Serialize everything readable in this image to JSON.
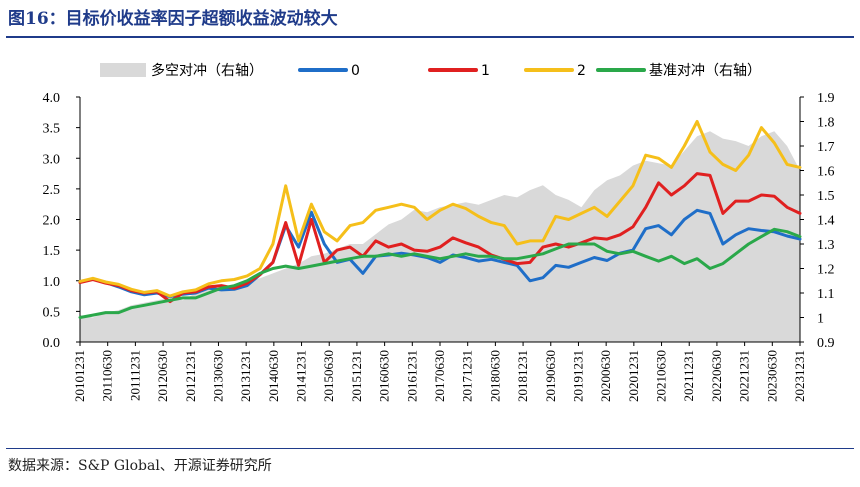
{
  "page": {
    "title": "图16：目标价收益率因子超额收益波动较大",
    "source": "数据来源：S&P Global、开源证券研究所"
  },
  "chart_data": {
    "type": "line",
    "left_axis": {
      "ylim": [
        0.0,
        4.0
      ],
      "ticks": [
        "0.0",
        "0.5",
        "1.0",
        "1.5",
        "2.0",
        "2.5",
        "3.0",
        "3.5",
        "4.0"
      ]
    },
    "right_axis": {
      "ylim": [
        0.9,
        1.9
      ],
      "ticks": [
        "0.9",
        "1",
        "1.1",
        "1.2",
        "1.3",
        "1.4",
        "1.5",
        "1.6",
        "1.7",
        "1.8",
        "1.9"
      ]
    },
    "x_tick_labels": [
      "20101231",
      "20110630",
      "20111231",
      "20120630",
      "20121231",
      "20130630",
      "20131231",
      "20140630",
      "20141231",
      "20150630",
      "20151231",
      "20160630",
      "20161231",
      "20170630",
      "20171231",
      "20180630",
      "20181231",
      "20190630",
      "20191231",
      "20200630",
      "20201231",
      "20210630",
      "20211231",
      "20220630",
      "20221231",
      "20230630",
      "20231231"
    ],
    "legend_position": "top",
    "series": [
      {
        "name": "多空对冲（右轴）",
        "kind": "area",
        "axis": "right",
        "color": "#d9d9d9",
        "values": [
          1.01,
          1.0,
          1.02,
          1.03,
          1.05,
          1.06,
          1.07,
          1.08,
          1.07,
          1.1,
          1.12,
          1.12,
          1.13,
          1.15,
          1.16,
          1.18,
          1.2,
          1.22,
          1.25,
          1.26,
          1.28,
          1.3,
          1.3,
          1.34,
          1.38,
          1.4,
          1.44,
          1.43,
          1.45,
          1.46,
          1.47,
          1.46,
          1.48,
          1.5,
          1.49,
          1.52,
          1.54,
          1.5,
          1.48,
          1.45,
          1.52,
          1.56,
          1.58,
          1.62,
          1.64,
          1.63,
          1.62,
          1.68,
          1.74,
          1.76,
          1.73,
          1.72,
          1.7,
          1.74,
          1.76,
          1.7,
          1.6
        ]
      },
      {
        "name": "0",
        "kind": "line",
        "axis": "left",
        "color": "#1f6ec8",
        "values": [
          0.98,
          1.03,
          0.97,
          0.9,
          0.82,
          0.77,
          0.8,
          0.74,
          0.78,
          0.8,
          0.88,
          0.85,
          0.86,
          0.92,
          1.1,
          1.3,
          1.9,
          1.55,
          2.12,
          1.6,
          1.3,
          1.35,
          1.12,
          1.4,
          1.42,
          1.45,
          1.42,
          1.38,
          1.3,
          1.42,
          1.38,
          1.32,
          1.35,
          1.3,
          1.25,
          1.0,
          1.05,
          1.25,
          1.22,
          1.3,
          1.38,
          1.33,
          1.45,
          1.5,
          1.85,
          1.9,
          1.75,
          2.0,
          2.15,
          2.1,
          1.6,
          1.75,
          1.85,
          1.82,
          1.8,
          1.73,
          1.68
        ]
      },
      {
        "name": "1",
        "kind": "line",
        "axis": "left",
        "color": "#e02020",
        "values": [
          0.97,
          1.02,
          0.96,
          0.92,
          0.84,
          0.8,
          0.82,
          0.66,
          0.8,
          0.82,
          0.9,
          0.92,
          0.88,
          0.96,
          1.1,
          1.3,
          1.95,
          1.25,
          2.0,
          1.3,
          1.5,
          1.55,
          1.4,
          1.65,
          1.55,
          1.6,
          1.5,
          1.48,
          1.55,
          1.7,
          1.62,
          1.55,
          1.42,
          1.35,
          1.28,
          1.3,
          1.55,
          1.6,
          1.55,
          1.62,
          1.7,
          1.68,
          1.75,
          1.88,
          2.2,
          2.6,
          2.4,
          2.55,
          2.75,
          2.72,
          2.1,
          2.3,
          2.3,
          2.4,
          2.38,
          2.2,
          2.1
        ]
      },
      {
        "name": "2",
        "kind": "line",
        "axis": "left",
        "color": "#f5bf1a",
        "values": [
          0.99,
          1.04,
          0.98,
          0.94,
          0.86,
          0.81,
          0.84,
          0.75,
          0.82,
          0.85,
          0.95,
          1.0,
          1.02,
          1.08,
          1.2,
          1.6,
          2.55,
          1.65,
          2.25,
          1.8,
          1.65,
          1.9,
          1.95,
          2.15,
          2.2,
          2.25,
          2.2,
          2.0,
          2.15,
          2.25,
          2.18,
          2.05,
          1.95,
          1.9,
          1.6,
          1.65,
          1.65,
          2.05,
          2.0,
          2.1,
          2.2,
          2.05,
          2.3,
          2.55,
          3.05,
          3.0,
          2.85,
          3.2,
          3.6,
          3.1,
          2.9,
          2.8,
          3.05,
          3.5,
          3.25,
          2.9,
          2.85
        ]
      },
      {
        "name": "基准对冲（右轴）",
        "kind": "line",
        "axis": "right",
        "color": "#2aa84a",
        "values": [
          1.0,
          1.01,
          1.02,
          1.02,
          1.04,
          1.05,
          1.06,
          1.07,
          1.08,
          1.08,
          1.1,
          1.12,
          1.13,
          1.15,
          1.18,
          1.2,
          1.21,
          1.2,
          1.21,
          1.22,
          1.23,
          1.24,
          1.25,
          1.25,
          1.26,
          1.25,
          1.26,
          1.25,
          1.24,
          1.25,
          1.26,
          1.25,
          1.25,
          1.24,
          1.24,
          1.25,
          1.26,
          1.28,
          1.3,
          1.3,
          1.3,
          1.27,
          1.26,
          1.27,
          1.25,
          1.23,
          1.25,
          1.22,
          1.24,
          1.2,
          1.22,
          1.26,
          1.3,
          1.33,
          1.36,
          1.35,
          1.33
        ]
      }
    ]
  }
}
